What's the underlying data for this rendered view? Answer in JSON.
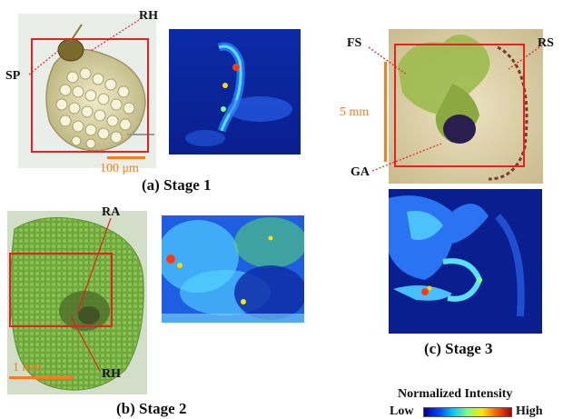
{
  "figure": {
    "panels": [
      {
        "id": "a",
        "caption": "(a) Stage 1",
        "labels": [
          "RH",
          "SP"
        ],
        "scale_bar": "100 μm"
      },
      {
        "id": "b",
        "caption": "(b) Stage 2",
        "labels": [
          "RA",
          "RH"
        ],
        "scale_bar": "1 mm"
      },
      {
        "id": "c",
        "caption": "(c) Stage 3",
        "labels": [
          "FS",
          "RS",
          "GA"
        ],
        "scale_bar": "5 mm"
      }
    ],
    "legend": {
      "title": "Normalized Intensity",
      "low": "Low",
      "high": "High",
      "colormap": [
        "#00008f",
        "#0040ff",
        "#00c8ff",
        "#7fff7f",
        "#ffe600",
        "#ff5a00",
        "#b00000"
      ]
    },
    "colors": {
      "roi_box": "#e32222",
      "leader_line": "#e32222",
      "scale_bar": "#ff7a1a",
      "heatmap_bg": "#0a1f8f"
    }
  }
}
